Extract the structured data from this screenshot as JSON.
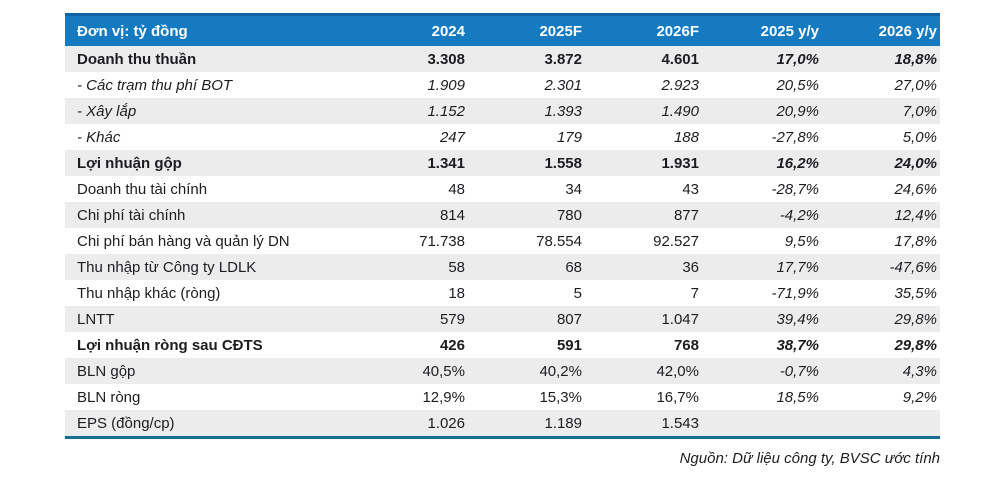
{
  "table": {
    "unit_header": "Đơn vị: tỷ đồng",
    "columns": [
      "2024",
      "2025F",
      "2026F",
      "2025 y/y",
      "2026 y/y"
    ],
    "rows": [
      {
        "label": "Doanh thu thuần",
        "style": "bold",
        "values": [
          "3.308",
          "3.872",
          "4.601",
          "17,0%",
          "18,8%"
        ]
      },
      {
        "label": "- Các trạm thu phí BOT",
        "style": "sub",
        "values": [
          "1.909",
          "2.301",
          "2.923",
          "20,5%",
          "27,0%"
        ]
      },
      {
        "label": "- Xây lắp",
        "style": "sub",
        "values": [
          "1.152",
          "1.393",
          "1.490",
          "20,9%",
          "7,0%"
        ]
      },
      {
        "label": "- Khác",
        "style": "sub",
        "values": [
          "247",
          "179",
          "188",
          "-27,8%",
          "5,0%"
        ]
      },
      {
        "label": "Lợi nhuận gộp",
        "style": "bold",
        "values": [
          "1.341",
          "1.558",
          "1.931",
          "16,2%",
          "24,0%"
        ]
      },
      {
        "label": "Doanh thu tài chính",
        "style": "normal",
        "values": [
          "48",
          "34",
          "43",
          "-28,7%",
          "24,6%"
        ]
      },
      {
        "label": "Chi phí tài chính",
        "style": "normal",
        "values": [
          "814",
          "780",
          "877",
          "-4,2%",
          "12,4%"
        ]
      },
      {
        "label": "Chi phí bán hàng và quản lý DN",
        "style": "normal",
        "values": [
          "71.738",
          "78.554",
          "92.527",
          "9,5%",
          "17,8%"
        ]
      },
      {
        "label": "Thu nhập từ Công ty LDLK",
        "style": "normal",
        "values": [
          "58",
          "68",
          "36",
          "17,7%",
          "-47,6%"
        ]
      },
      {
        "label": "Thu nhập khác (ròng)",
        "style": "normal",
        "values": [
          "18",
          "5",
          "7",
          "-71,9%",
          "35,5%"
        ]
      },
      {
        "label": "LNTT",
        "style": "normal",
        "values": [
          "579",
          "807",
          "1.047",
          "39,4%",
          "29,8%"
        ]
      },
      {
        "label": "Lợi nhuận ròng sau CĐTS",
        "style": "bold",
        "values": [
          "426",
          "591",
          "768",
          "38,7%",
          "29,8%"
        ]
      },
      {
        "label": "BLN gộp",
        "style": "normal",
        "values": [
          "40,5%",
          "40,2%",
          "42,0%",
          "-0,7%",
          "4,3%"
        ]
      },
      {
        "label": "BLN ròng",
        "style": "normal",
        "values": [
          "12,9%",
          "15,3%",
          "16,7%",
          "18,5%",
          "9,2%"
        ]
      },
      {
        "label": "EPS (đồng/cp)",
        "style": "normal",
        "values": [
          "1.026",
          "1.189",
          "1.543",
          "",
          ""
        ]
      }
    ]
  },
  "footer": {
    "source_note": "Nguồn: Dữ liệu công ty, BVSC ước tính"
  },
  "colors": {
    "header_bg": "#157abf",
    "header_top": "#0f62a6",
    "stripe": "#ececec",
    "bottom_border": "#196d95",
    "text": "#1d1d1f"
  }
}
